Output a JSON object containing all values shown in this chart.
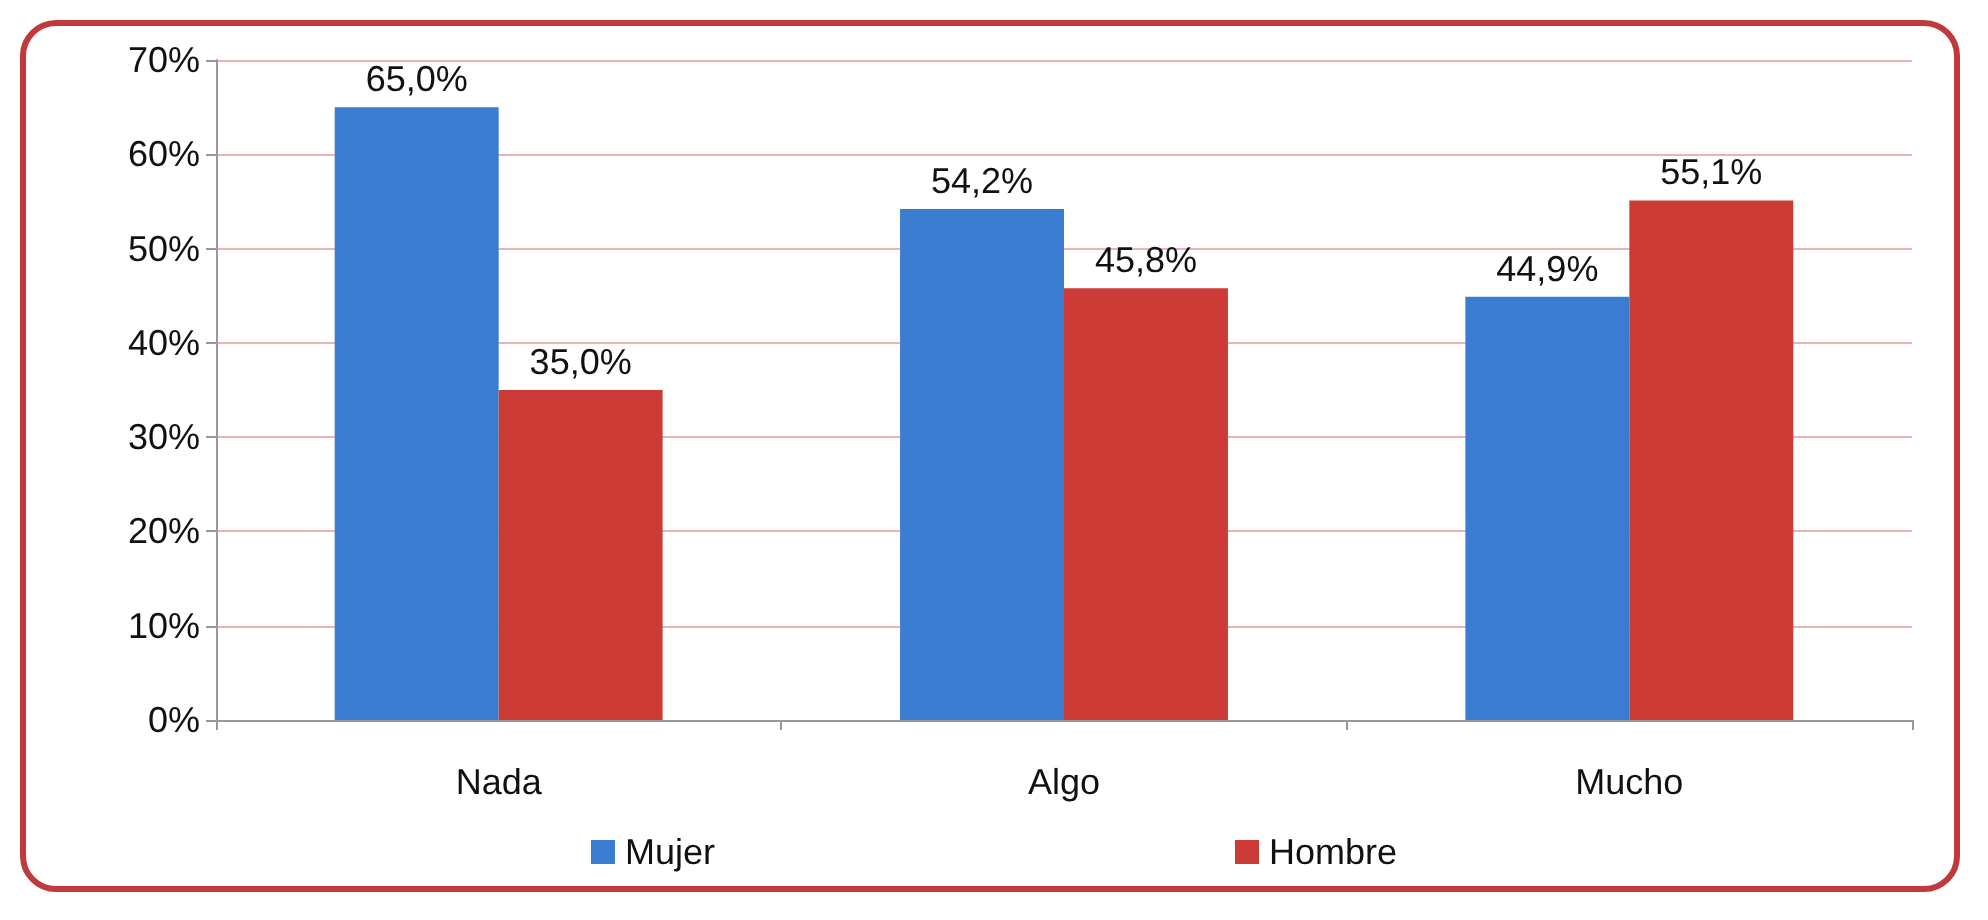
{
  "chart_data": {
    "type": "bar",
    "categories": [
      "Nada",
      "Algo",
      "Mucho"
    ],
    "series": [
      {
        "name": "Mujer",
        "color": "#3a7cd0",
        "values": [
          65.0,
          54.2,
          44.9
        ],
        "value_labels": [
          "65,0%",
          "54,2%",
          "44,9%"
        ]
      },
      {
        "name": "Hombre",
        "color": "#cc3b36",
        "values": [
          35.0,
          45.8,
          55.1
        ],
        "value_labels": [
          "35,0%",
          "45,8%",
          "55,1%"
        ]
      }
    ],
    "ylim": [
      0,
      70
    ],
    "yticks": [
      {
        "value": 0,
        "label": "0%"
      },
      {
        "value": 10,
        "label": "10%"
      },
      {
        "value": 20,
        "label": "20%"
      },
      {
        "value": 30,
        "label": "30%"
      },
      {
        "value": 40,
        "label": "40%"
      },
      {
        "value": 50,
        "label": "50%"
      },
      {
        "value": 60,
        "label": "60%"
      },
      {
        "value": 70,
        "label": "70%"
      }
    ],
    "grid": "y",
    "legend": "bottom"
  }
}
